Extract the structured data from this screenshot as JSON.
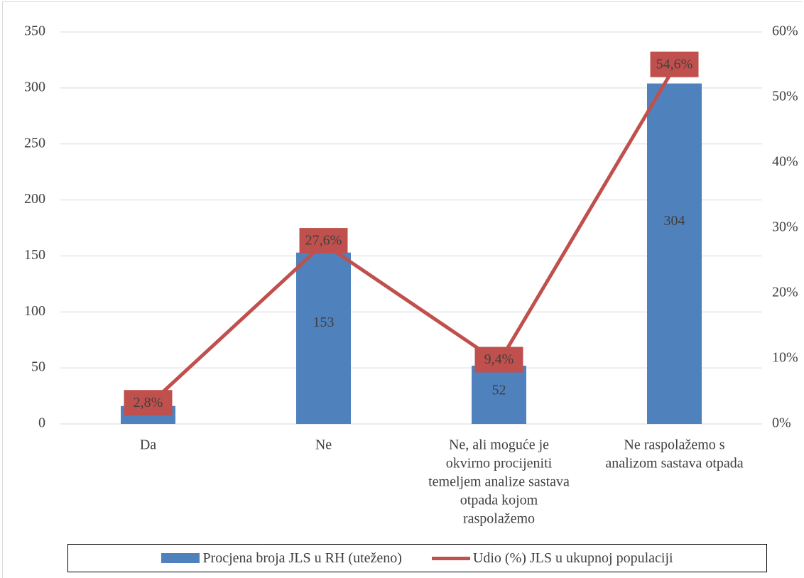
{
  "chart_data": {
    "type": "bar",
    "categories": [
      [
        "Da"
      ],
      [
        "Ne"
      ],
      [
        "Ne, ali moguće je",
        "okvirno procijeniti",
        "temeljem analize sastava",
        "otpada kojom",
        "raspolažemo"
      ],
      [
        "Ne raspolažemo s",
        "analizom sastava otpada"
      ]
    ],
    "series": [
      {
        "name": "Procjena broja JLS u RH (uteženo)",
        "kind": "bar",
        "axis": "left",
        "values": [
          16,
          153,
          52,
          304
        ],
        "labels": [
          "16",
          "153",
          "52",
          "304"
        ],
        "color": "#4f81bd"
      },
      {
        "name": "Udio (%) JLS  u ukupnoj populaciji",
        "kind": "line",
        "axis": "right",
        "values": [
          2.8,
          27.6,
          9.4,
          54.6
        ],
        "labels": [
          "2,8%",
          "27,6%",
          "9,4%",
          "54,6%"
        ],
        "color": "#c0504d"
      }
    ],
    "y_left": {
      "min": 0,
      "max": 350,
      "ticks": [
        "0",
        "50",
        "100",
        "150",
        "200",
        "250",
        "300",
        "350"
      ]
    },
    "y_right": {
      "min": 0,
      "max": 60,
      "ticks": [
        "0%",
        "10%",
        "20%",
        "30%",
        "40%",
        "50%",
        "60%"
      ]
    },
    "grid": true,
    "legend_position": "bottom",
    "text_color": "#404040",
    "grid_color": "#d9d9d9"
  }
}
